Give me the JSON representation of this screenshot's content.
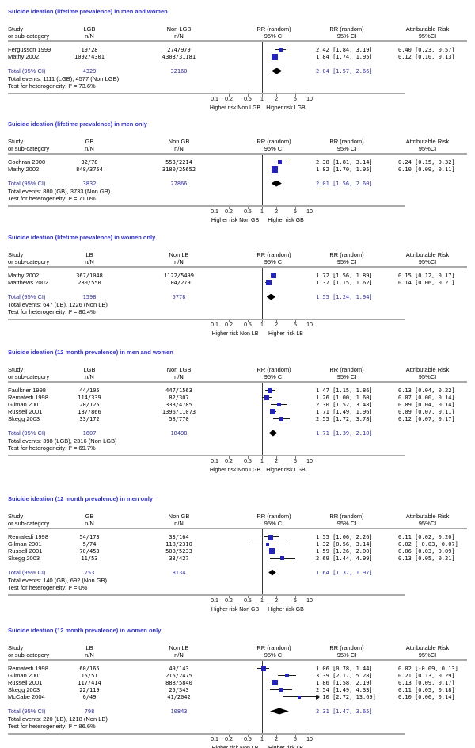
{
  "colors": {
    "title_blue": "#3333cc",
    "total_navy": "#333399",
    "marker_blue": "#2424bb",
    "text_black": "#000000",
    "rule_gray": "#a9a9a9"
  },
  "chart_data": [
    {
      "type": "scatter",
      "subtype": "forest-plot",
      "title": "Suicide ideation (lifetime prevalence) in men and women",
      "columns": {
        "study": [
          "Study",
          "or sub-category"
        ],
        "g1": [
          "LGB",
          "n/N"
        ],
        "g2": [
          "Non LGB",
          "n/N"
        ],
        "plot": [
          "RR (random)",
          "95% CI"
        ],
        "rr": [
          "RR (random)",
          "95% CI"
        ],
        "ar": [
          "Attributable Risk",
          "95%CI"
        ]
      },
      "studies": [
        {
          "name": "Fergusson 1999",
          "g1": "19/28",
          "g2": "274/979",
          "rr": 2.42,
          "lo": 1.84,
          "hi": 3.19,
          "rr_label": "2.42 [1.84, 3.19]",
          "ar_label": "0.40 [0.23, 0.57]",
          "marker": 5
        },
        {
          "name": "Mathy 2002",
          "g1": "1092/4301",
          "g2": "4303/31181",
          "rr": 1.84,
          "lo": 1.74,
          "hi": 1.95,
          "rr_label": "1.84 [1.74, 1.95]",
          "ar_label": "0.12 [0.10, 0.13]",
          "marker": 8
        }
      ],
      "total": {
        "label": "Total (95% CI)",
        "g1": "4329",
        "g2": "32160",
        "rr": 2.04,
        "lo": 1.57,
        "hi": 2.66,
        "rr_label": "2.04 [1.57, 2.66]"
      },
      "total_events": "Total events: 1111 (LGB), 4577 (Non LGB)",
      "heterogeneity": "Test for heterogeneity:  I² = 73.6%",
      "x_ticks": [
        "0.1",
        "0.2",
        "0.5",
        "1",
        "2",
        "5",
        "10"
      ],
      "x_tick_values": [
        0.1,
        0.2,
        0.5,
        1,
        2,
        5,
        10
      ],
      "xlabel_left": "Higher risk Non LGB",
      "xlabel_right": "Higher risk LGB"
    },
    {
      "type": "scatter",
      "subtype": "forest-plot",
      "title": "Suicide ideation (lifetime prevalence) in men only",
      "columns": {
        "study": [
          "Study",
          "or sub-category"
        ],
        "g1": [
          "GB",
          "n/N"
        ],
        "g2": [
          "Non GB",
          "n/N"
        ],
        "plot": [
          "RR (random)",
          "95% CI"
        ],
        "rr": [
          "RR (random)",
          "95% CI"
        ],
        "ar": [
          "Attributable Risk",
          "95%CI"
        ]
      },
      "studies": [
        {
          "name": "Cochran 2000",
          "g1": "32/78",
          "g2": "553/2214",
          "rr": 2.38,
          "lo": 1.81,
          "hi": 3.14,
          "rr_label": "2.38 [1.81, 3.14]",
          "ar_label": "0.24 [0.15, 0.32]",
          "marker": 5
        },
        {
          "name": "Mathy 2002",
          "g1": "848/3754",
          "g2": "3180/25652",
          "rr": 1.82,
          "lo": 1.7,
          "hi": 1.95,
          "rr_label": "1.82 [1.70, 1.95]",
          "ar_label": "0.10 [0.09, 0.11]",
          "marker": 8
        }
      ],
      "total": {
        "label": "Total (95% CI)",
        "g1": "3832",
        "g2": "27866",
        "rr": 2.01,
        "lo": 1.56,
        "hi": 2.6,
        "rr_label": "2.01 [1.56, 2.60]"
      },
      "total_events": "Total events: 880 (GB), 3733 (Non GB)",
      "heterogeneity": "Test for heterogeneity:  I² = 71.0%",
      "x_ticks": [
        "0.1",
        "0.2",
        "0.5",
        "1",
        "2",
        "5",
        "10"
      ],
      "x_tick_values": [
        0.1,
        0.2,
        0.5,
        1,
        2,
        5,
        10
      ],
      "xlabel_left": "Higher risk Non GB",
      "xlabel_right": "Higher risk GB"
    },
    {
      "type": "scatter",
      "subtype": "forest-plot",
      "title": "Suicide ideation (lifetime prevalence) in women only",
      "columns": {
        "study": [
          "Study",
          "or sub-category"
        ],
        "g1": [
          "LB",
          "n/N"
        ],
        "g2": [
          "Non LB",
          "n/N"
        ],
        "plot": [
          "RR (random)",
          "95% CI"
        ],
        "rr": [
          "RR (random)",
          "95% CI"
        ],
        "ar": [
          "Attributable Risk",
          "95%CI"
        ]
      },
      "studies": [
        {
          "name": "Mathy 2002",
          "g1": "367/1048",
          "g2": "1122/5499",
          "rr": 1.72,
          "lo": 1.56,
          "hi": 1.89,
          "rr_label": "1.72 [1.56, 1.89]",
          "ar_label": "0.15 [0.12, 0.17]",
          "marker": 7
        },
        {
          "name": "Matthews 2002",
          "g1": "280/550",
          "g2": "104/279",
          "rr": 1.37,
          "lo": 1.15,
          "hi": 1.62,
          "rr_label": "1.37 [1.15, 1.62]",
          "ar_label": "0.14 [0.06, 0.21]",
          "marker": 7
        }
      ],
      "total": {
        "label": "Total (95% CI)",
        "g1": "1598",
        "g2": "5778",
        "rr": 1.55,
        "lo": 1.24,
        "hi": 1.94,
        "rr_label": "1.55 [1.24, 1.94]"
      },
      "total_events": "Total events: 647 (LB), 1226 (Non LB)",
      "heterogeneity": "Test for heterogeneity:  I² = 80.4%",
      "x_ticks": [
        "0.1",
        "0.2",
        "0.5",
        "1",
        "2",
        "5",
        "10"
      ],
      "x_tick_values": [
        0.1,
        0.2,
        0.5,
        1,
        2,
        5,
        10
      ],
      "xlabel_left": "Higher risk Non LB",
      "xlabel_right": "Higher risk LB"
    },
    {
      "type": "scatter",
      "subtype": "forest-plot",
      "title": "Suicide ideation (12 month prevalence) in men and women",
      "columns": {
        "study": [
          "Study",
          "or sub-category"
        ],
        "g1": [
          "LGB",
          "n/N"
        ],
        "g2": [
          "Non LGB",
          "n/N"
        ],
        "plot": [
          "RR (random)",
          "95% CI"
        ],
        "rr": [
          "RR (random)",
          "95% CI"
        ],
        "ar": [
          "Attributable Risk",
          "95%CI"
        ]
      },
      "studies": [
        {
          "name": "Faulkner 1998",
          "g1": "44/105",
          "g2": "447/1563",
          "rr": 1.47,
          "lo": 1.15,
          "hi": 1.86,
          "rr_label": "1.47 [1.15, 1.86]",
          "ar_label": "0.13 [0.04, 0.22]",
          "marker": 6
        },
        {
          "name": "Remafedi 1998",
          "g1": "114/339",
          "g2": "82/307",
          "rr": 1.26,
          "lo": 1.0,
          "hi": 1.6,
          "rr_label": "1.26 [1.00, 1.60]",
          "ar_label": "0.07 [0.00, 0.14]",
          "marker": 6
        },
        {
          "name": "Gilman 2001",
          "g1": "20/125",
          "g2": "333/4785",
          "rr": 2.3,
          "lo": 1.52,
          "hi": 3.48,
          "rr_label": "2.30 [1.52, 3.48]",
          "ar_label": "0.09 [0.04, 0.14]",
          "marker": 5
        },
        {
          "name": "Russell 2001",
          "g1": "187/866",
          "g2": "1396/11073",
          "rr": 1.71,
          "lo": 1.49,
          "hi": 1.96,
          "rr_label": "1.71 [1.49, 1.96]",
          "ar_label": "0.09 [0.07, 0.11]",
          "marker": 7
        },
        {
          "name": "Skegg 2003",
          "g1": "33/172",
          "g2": "58/770",
          "rr": 2.55,
          "lo": 1.72,
          "hi": 3.78,
          "rr_label": "2.55 [1.72, 3.78]",
          "ar_label": "0.12 [0.07, 0.17]",
          "marker": 5
        }
      ],
      "total": {
        "label": "Total (95% CI)",
        "g1": "1607",
        "g2": "18498",
        "rr": 1.71,
        "lo": 1.39,
        "hi": 2.1,
        "rr_label": "1.71 [1.39, 2.10]"
      },
      "total_events": "Total events: 398 (LGB), 2316 (Non LGB)",
      "heterogeneity": "Test for heterogeneity:  I² = 69.7%",
      "x_ticks": [
        "0.1",
        "0.2",
        "0.5",
        "1",
        "2",
        "5",
        "10"
      ],
      "x_tick_values": [
        0.1,
        0.2,
        0.5,
        1,
        2,
        5,
        10
      ],
      "xlabel_left": "Higher risk Non LGB",
      "xlabel_right": "Higher risk LGB"
    },
    {
      "type": "scatter",
      "subtype": "forest-plot",
      "title": "Suicide ideation (12 month prevalence) in men only",
      "columns": {
        "study": [
          "Study",
          "or sub-category"
        ],
        "g1": [
          "GB",
          "n/N"
        ],
        "g2": [
          "Non GB",
          "n/N"
        ],
        "plot": [
          "RR (random)",
          "95% CI"
        ],
        "rr": [
          "RR (random)",
          "95% CI"
        ],
        "ar": [
          "Attributable Risk",
          "95%CI"
        ]
      },
      "studies": [
        {
          "name": "Remafedi 1998",
          "g1": "54/173",
          "g2": "33/164",
          "rr": 1.55,
          "lo": 1.06,
          "hi": 2.26,
          "rr_label": "1.55 [1.06, 2.26]",
          "ar_label": "0.11 [0.02, 0.20]",
          "marker": 6
        },
        {
          "name": "Gilman 2001",
          "g1": "5/74",
          "g2": "118/2310",
          "rr": 1.32,
          "lo": 0.56,
          "hi": 3.14,
          "rr_label": "1.32 [0.56, 3.14]",
          "ar_label": "0.02 [-0.03, 0.07]",
          "marker": 4
        },
        {
          "name": "Russell 2001",
          "g1": "70/453",
          "g2": "508/5233",
          "rr": 1.59,
          "lo": 1.26,
          "hi": 2.0,
          "rr_label": "1.59 [1.26, 2.00]",
          "ar_label": "0.06 [0.03, 0.09]",
          "marker": 7
        },
        {
          "name": "Skegg 2003",
          "g1": "11/53",
          "g2": "33/427",
          "rr": 2.69,
          "lo": 1.44,
          "hi": 4.99,
          "rr_label": "2.69 [1.44, 4.99]",
          "ar_label": "0.13 [0.05, 0.21]",
          "marker": 5
        }
      ],
      "total": {
        "label": "Total (95% CI)",
        "g1": "753",
        "g2": "8134",
        "rr": 1.64,
        "lo": 1.37,
        "hi": 1.97,
        "rr_label": "1.64 [1.37, 1.97]"
      },
      "total_events": "Total events: 140 (GB), 692 (Non GB)",
      "heterogeneity": "Test for heterogeneity:  I² = 0%",
      "x_ticks": [
        "0.1",
        "0.2",
        "0.5",
        "1",
        "2",
        "5",
        "10"
      ],
      "x_tick_values": [
        0.1,
        0.2,
        0.5,
        1,
        2,
        5,
        10
      ],
      "xlabel_left": "Higher risk Non GB",
      "xlabel_right": "Higher risk GB"
    },
    {
      "type": "scatter",
      "subtype": "forest-plot",
      "title": "Suicide ideation (12 month prevalence) in women only",
      "columns": {
        "study": [
          "Study",
          "or sub-category"
        ],
        "g1": [
          "LB",
          "n/N"
        ],
        "g2": [
          "Non LB",
          "n/N"
        ],
        "plot": [
          "RR (random)",
          "95% CI"
        ],
        "rr": [
          "RR (random)",
          "95% CI"
        ],
        "ar": [
          "Attributable Risk",
          "95%CI"
        ]
      },
      "studies": [
        {
          "name": "Remafedi 1998",
          "g1": "60/165",
          "g2": "49/143",
          "rr": 1.06,
          "lo": 0.78,
          "hi": 1.44,
          "rr_label": "1.06 [0.78, 1.44]",
          "ar_label": "0.02 [-0.09, 0.13]",
          "marker": 6
        },
        {
          "name": "Gilman 2001",
          "g1": "15/51",
          "g2": "215/2475",
          "rr": 3.39,
          "lo": 2.17,
          "hi": 5.28,
          "rr_label": "3.39 [2.17, 5.28]",
          "ar_label": "0.21 [0.13, 0.29]",
          "marker": 5
        },
        {
          "name": "Russell 2001",
          "g1": "117/414",
          "g2": "888/5840",
          "rr": 1.86,
          "lo": 1.58,
          "hi": 2.19,
          "rr_label": "1.86 [1.58, 2.19]",
          "ar_label": "0.13 [0.09, 0.17]",
          "marker": 7
        },
        {
          "name": "Skegg 2003",
          "g1": "22/119",
          "g2": "25/343",
          "rr": 2.54,
          "lo": 1.49,
          "hi": 4.33,
          "rr_label": "2.54 [1.49, 4.33]",
          "ar_label": "0.11 [0.05, 0.18]",
          "marker": 5
        },
        {
          "name": "McCabe 2004",
          "g1": "6/49",
          "g2": "41/2042",
          "rr": 6.1,
          "lo": 2.72,
          "hi": 13.69,
          "rr_label": "6.10 [2.72, 13.69]",
          "ar_label": "0.10 [0.06, 0.14]",
          "marker": 4,
          "arrow_right": true
        }
      ],
      "total": {
        "label": "Total (95% CI)",
        "g1": "798",
        "g2": "10843",
        "rr": 2.31,
        "lo": 1.47,
        "hi": 3.65,
        "rr_label": "2.31 [1.47, 3.65]"
      },
      "total_events": "Total events: 220 (LB), 1218 (Non LB)",
      "heterogeneity": "Test for heterogeneity:  I² = 86.6%",
      "x_ticks": [
        "0.1",
        "0.2",
        "0.5",
        "1",
        "2",
        "5",
        "10"
      ],
      "x_tick_values": [
        0.1,
        0.2,
        0.5,
        1,
        2,
        5,
        10
      ],
      "xlabel_left": "Higher risk Non LB",
      "xlabel_right": "Higher risk LB"
    }
  ]
}
